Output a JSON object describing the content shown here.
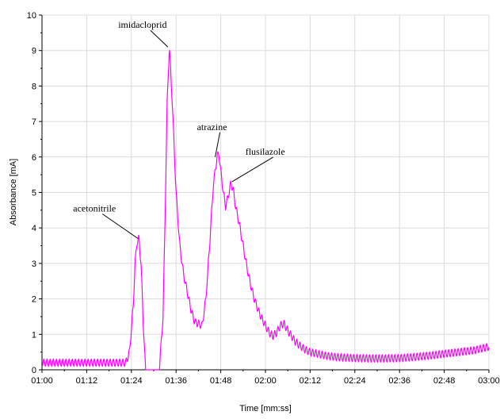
{
  "chart_data": {
    "type": "line",
    "xlabel": "Time [mm:ss]",
    "ylabel": "Absorbance [mA]",
    "xlim": [
      60,
      180
    ],
    "ylim": [
      0,
      10
    ],
    "x_tick_values": [
      60,
      72,
      84,
      96,
      108,
      120,
      132,
      144,
      156,
      168,
      180
    ],
    "x_tick_labels": [
      "01:00",
      "01:12",
      "01:24",
      "01:36",
      "01:48",
      "02:00",
      "02:12",
      "02:24",
      "02:36",
      "02:48",
      "03:00"
    ],
    "y_tick_values": [
      0,
      1,
      2,
      3,
      4,
      5,
      6,
      7,
      8,
      9,
      10
    ],
    "y_tick_labels": [
      "0",
      "1",
      "2",
      "3",
      "4",
      "5",
      "6",
      "7",
      "8",
      "9",
      "10"
    ],
    "grid": true,
    "line_color": "#ff00ff",
    "series": [
      {
        "x": [
          60,
          64,
          68,
          72,
          76,
          80,
          82.5,
          83.5,
          84.5,
          85.0,
          85.5,
          86.0,
          86.6,
          87.2,
          87.8,
          88.3,
          89.0,
          89.8,
          90.5,
          91.5,
          92.5,
          93.0,
          93.6,
          94.2,
          95.0,
          96.0,
          97.0,
          98.0,
          99.0,
          100.0,
          101.0,
          102.0,
          103.0,
          104.0,
          105.0,
          106.0,
          107.0,
          107.5,
          108.0,
          108.7,
          109.3,
          110.0,
          110.7,
          111.3,
          112.0,
          113.0,
          114.0,
          115.0,
          116.0,
          117.0,
          118.0,
          119.0,
          120.0,
          121.0,
          122.0,
          123.0,
          124.0,
          125.0,
          126.0,
          127.0,
          128.0,
          129.0,
          130.0,
          131.0,
          132.0,
          134.0,
          136.0,
          138.0,
          140.0,
          144.0,
          148.0,
          152.0,
          156.0,
          160.0,
          164.0,
          168.0,
          172.0,
          176.0,
          180.0
        ],
        "y": [
          0.2,
          0.2,
          0.2,
          0.2,
          0.2,
          0.2,
          0.2,
          0.5,
          1.8,
          3.0,
          3.6,
          3.7,
          3.0,
          1.3,
          0.0,
          0.0,
          0.0,
          0.0,
          0.0,
          0.0,
          1.5,
          4.0,
          7.5,
          9.1,
          7.5,
          5.0,
          3.5,
          2.7,
          2.2,
          1.7,
          1.35,
          1.3,
          1.25,
          2.0,
          3.5,
          5.2,
          6.0,
          6.1,
          5.6,
          5.0,
          4.6,
          4.9,
          5.25,
          5.1,
          4.6,
          4.1,
          3.5,
          2.9,
          2.4,
          2.0,
          1.7,
          1.45,
          1.25,
          1.05,
          0.95,
          1.05,
          1.25,
          1.3,
          1.1,
          0.95,
          0.8,
          0.7,
          0.62,
          0.55,
          0.5,
          0.45,
          0.4,
          0.37,
          0.35,
          0.33,
          0.32,
          0.32,
          0.33,
          0.36,
          0.4,
          0.45,
          0.5,
          0.55,
          0.65
        ]
      }
    ],
    "annotations": [
      {
        "label": "acetonitrile",
        "x": 85.8,
        "y": 3.7
      },
      {
        "label": "imidacloprid",
        "x": 93.8,
        "y": 9.1
      },
      {
        "label": "atrazine",
        "x": 106.5,
        "y": 6.0
      },
      {
        "label": "flusilazole",
        "x": 111.0,
        "y": 5.3
      }
    ]
  }
}
